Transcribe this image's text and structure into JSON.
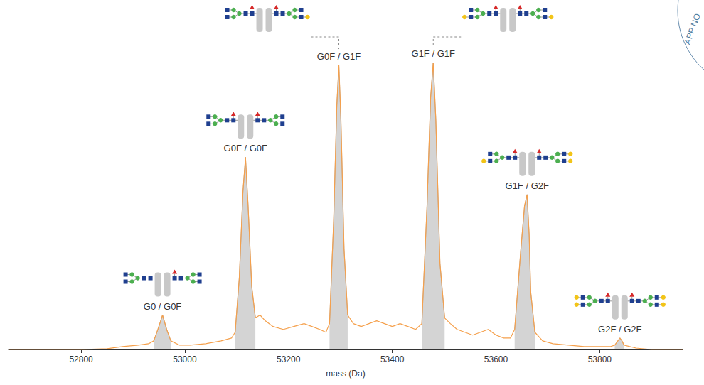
{
  "chart_data": {
    "type": "line",
    "x_label": "mass (Da)",
    "color": "#f5a04c",
    "x": [
      52660,
      52800,
      52850,
      52880,
      52910,
      52930,
      52940,
      52948,
      52957,
      52965,
      52973,
      52990,
      53010,
      53040,
      53070,
      53090,
      53097,
      53105,
      53112,
      53117,
      53122,
      53129,
      53136,
      53145,
      53155,
      53170,
      53190,
      53210,
      53230,
      53245,
      53260,
      53272,
      53279,
      53287,
      53293,
      53297,
      53301,
      53307,
      53314,
      53325,
      53340,
      53355,
      53370,
      53385,
      53400,
      53415,
      53430,
      53445,
      53457,
      53467,
      53474,
      53479,
      53484,
      53492,
      53501,
      53512,
      53525,
      53540,
      53555,
      53570,
      53585,
      53600,
      53615,
      53628,
      53636,
      53648,
      53655,
      53660,
      53664,
      53667,
      53675,
      53690,
      53710,
      53740,
      53770,
      53800,
      53820,
      53829,
      53835,
      53839,
      53843,
      53847,
      53870,
      53900,
      53960
    ],
    "values": [
      0,
      0,
      0.3,
      1,
      1.5,
      2,
      3,
      7,
      12,
      7,
      3,
      1.5,
      1.5,
      2,
      3,
      4,
      6,
      25,
      55,
      67,
      50,
      22,
      11,
      12,
      10,
      8,
      7,
      8,
      9,
      8,
      7,
      6,
      9,
      45,
      85,
      99,
      80,
      35,
      12,
      9,
      8,
      9,
      10,
      9,
      8,
      9,
      8,
      7,
      9,
      50,
      88,
      100,
      80,
      30,
      11,
      9,
      7,
      6,
      5,
      6,
      7,
      5,
      4,
      4,
      7,
      35,
      50,
      54,
      40,
      20,
      6,
      3,
      2,
      1.5,
      1,
      1,
      1,
      1.5,
      3,
      4,
      3,
      1.5,
      0.5,
      0,
      0
    ],
    "xlim": [
      52660,
      53960
    ],
    "xticks": [
      52800,
      53000,
      53200,
      53400,
      53600,
      53800
    ],
    "ylim": [
      0,
      100
    ],
    "tick_labels": "x",
    "grid": false,
    "peaks": [
      {
        "label": "G0 / G0F",
        "range": [
          52940,
          52973
        ]
      },
      {
        "label": "G0F / G0F",
        "range": [
          53097,
          53136
        ]
      },
      {
        "label": "G0F / G1F",
        "range": [
          53279,
          53314
        ]
      },
      {
        "label": "G1F / G1F",
        "range": [
          53457,
          53501
        ]
      },
      {
        "label": "G1F / G2F",
        "range": [
          53636,
          53675
        ]
      },
      {
        "label": "G2F / G2F",
        "range": [
          53829,
          53847
        ]
      }
    ],
    "annotations": [
      {
        "text": "APP NO"
      }
    ]
  }
}
